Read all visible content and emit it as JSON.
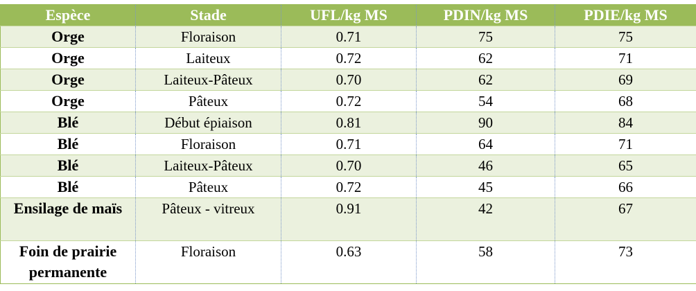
{
  "table": {
    "header": [
      "Espèce",
      "Stade",
      "UFL/kg MS",
      "PDIN/kg MS",
      "PDIE/kg MS"
    ],
    "rows": [
      [
        "Orge",
        "Floraison",
        "0.71",
        "75",
        "75"
      ],
      [
        "Orge",
        "Laiteux",
        "0.72",
        "62",
        "71"
      ],
      [
        "Orge",
        "Laiteux-Pâteux",
        "0.70",
        "62",
        "69"
      ],
      [
        "Orge",
        "Pâteux",
        "0.72",
        "54",
        "68"
      ],
      [
        "Blé",
        "Début épiaison",
        "0.81",
        "90",
        "84"
      ],
      [
        "Blé",
        "Floraison",
        "0.71",
        "64",
        "71"
      ],
      [
        "Blé",
        "Laiteux-Pâteux",
        "0.70",
        "46",
        "65"
      ],
      [
        "Blé",
        "Pâteux",
        "0.72",
        "45",
        "66"
      ],
      [
        "Ensilage de maïs",
        "Pâteux - vitreux",
        "0.91",
        "42",
        "67"
      ],
      [
        "Foin de prairie permanente",
        "Floraison",
        "0.63",
        "58",
        "73"
      ]
    ]
  }
}
